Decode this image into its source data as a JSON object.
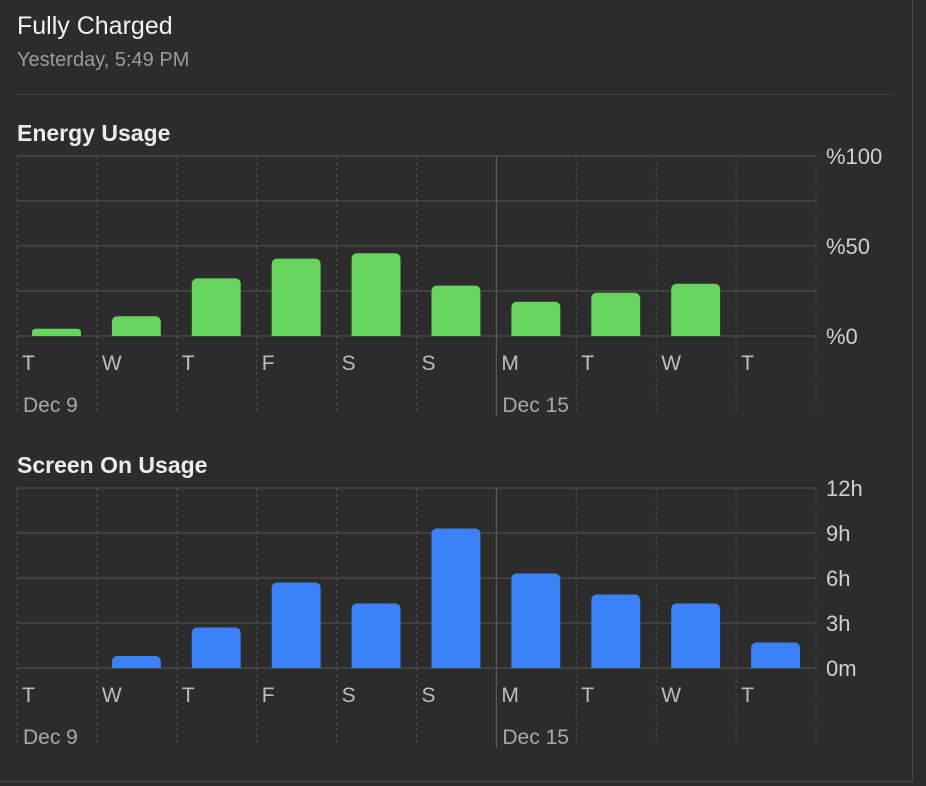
{
  "status": {
    "title": "Fully Charged",
    "time": "Yesterday, 5:49 PM"
  },
  "colors": {
    "energy_bar": "#67d45e",
    "screen_bar": "#3a82f6",
    "background": "#2b2c2b"
  },
  "chart_data": [
    {
      "type": "bar",
      "title": "Energy Usage",
      "categories": [
        "T",
        "W",
        "T",
        "F",
        "S",
        "S",
        "M",
        "T",
        "W",
        "T"
      ],
      "date_labels": [
        {
          "index": 0,
          "label": "Dec 9"
        },
        {
          "index": 6,
          "label": "Dec 15"
        }
      ],
      "values": [
        4,
        11,
        32,
        43,
        46,
        28,
        19,
        24,
        29,
        0
      ],
      "ylim": [
        0,
        100
      ],
      "yticks": [
        0,
        50,
        100
      ],
      "ytick_labels": [
        "%0",
        "%50",
        "%100"
      ],
      "grid": true,
      "color": "#67d45e"
    },
    {
      "type": "bar",
      "title": "Screen On Usage",
      "categories": [
        "T",
        "W",
        "T",
        "F",
        "S",
        "S",
        "M",
        "T",
        "W",
        "T"
      ],
      "date_labels": [
        {
          "index": 0,
          "label": "Dec 9"
        },
        {
          "index": 6,
          "label": "Dec 15"
        }
      ],
      "values": [
        0,
        0.8,
        2.7,
        5.7,
        4.3,
        9.3,
        6.3,
        4.9,
        4.3,
        1.7
      ],
      "ylim": [
        0,
        12
      ],
      "yticks": [
        0,
        3,
        6,
        9,
        12
      ],
      "ytick_labels": [
        "0m",
        "3h",
        "6h",
        "9h",
        "12h"
      ],
      "grid": true,
      "color": "#3a82f6"
    }
  ]
}
